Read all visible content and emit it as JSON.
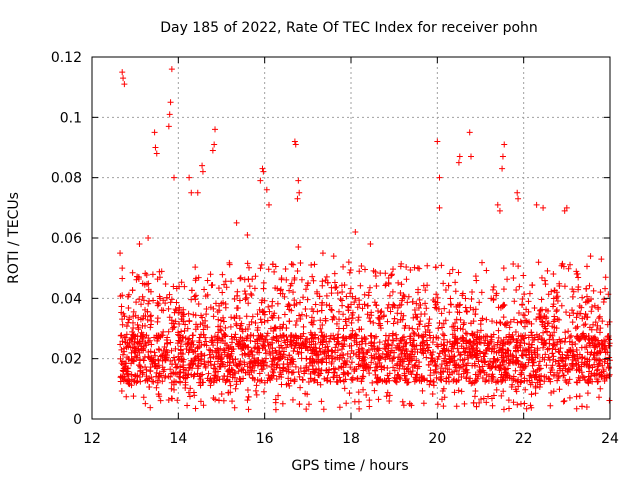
{
  "chart_data": {
    "type": "scatter",
    "title": "Day 185 of 2022, Rate Of TEC Index for receiver pohn",
    "xlabel": "GPS time / hours",
    "ylabel": "ROTI / TECUs",
    "xlim": [
      12,
      24
    ],
    "ylim": [
      0,
      0.12
    ],
    "xticks": [
      12,
      14,
      16,
      18,
      20,
      22,
      24
    ],
    "yticks": [
      0,
      0.02,
      0.04,
      0.06,
      0.08,
      0.1,
      0.12
    ],
    "xtick_labels": [
      "12",
      "14",
      "16",
      "18",
      "20",
      "22",
      "24"
    ],
    "ytick_labels": [
      "0",
      "0.02",
      "0.04",
      "0.06",
      "0.08",
      "0.1",
      "0.12"
    ],
    "grid": true,
    "marker": "+",
    "color": "#ff0000",
    "series": [
      {
        "name": "ROTI",
        "points": [
          [
            12.7,
            0.115
          ],
          [
            12.72,
            0.113
          ],
          [
            12.75,
            0.111
          ],
          [
            13.85,
            0.116
          ],
          [
            13.82,
            0.105
          ],
          [
            13.8,
            0.101
          ],
          [
            13.78,
            0.097
          ],
          [
            14.85,
            0.096
          ],
          [
            14.83,
            0.091
          ],
          [
            14.8,
            0.089
          ],
          [
            13.45,
            0.095
          ],
          [
            13.47,
            0.09
          ],
          [
            13.5,
            0.088
          ],
          [
            16.7,
            0.092
          ],
          [
            16.72,
            0.091
          ],
          [
            20.0,
            0.092
          ],
          [
            20.75,
            0.095
          ],
          [
            21.55,
            0.091
          ],
          [
            21.52,
            0.087
          ],
          [
            21.5,
            0.083
          ],
          [
            20.5,
            0.085
          ],
          [
            20.52,
            0.087
          ],
          [
            20.78,
            0.087
          ],
          [
            21.85,
            0.075
          ],
          [
            21.87,
            0.073
          ],
          [
            15.95,
            0.083
          ],
          [
            15.97,
            0.082
          ],
          [
            15.9,
            0.079
          ],
          [
            16.05,
            0.076
          ],
          [
            16.1,
            0.071
          ],
          [
            16.78,
            0.079
          ],
          [
            16.8,
            0.075
          ],
          [
            16.76,
            0.073
          ],
          [
            14.55,
            0.084
          ],
          [
            14.57,
            0.082
          ],
          [
            14.45,
            0.075
          ],
          [
            13.9,
            0.08
          ],
          [
            14.25,
            0.08
          ],
          [
            14.3,
            0.075
          ],
          [
            20.05,
            0.08
          ],
          [
            20.05,
            0.07
          ],
          [
            21.4,
            0.071
          ],
          [
            21.45,
            0.069
          ],
          [
            22.3,
            0.071
          ],
          [
            22.45,
            0.07
          ],
          [
            22.95,
            0.069
          ],
          [
            23.0,
            0.07
          ],
          [
            16.78,
            0.057
          ],
          [
            18.1,
            0.062
          ],
          [
            18.45,
            0.058
          ],
          [
            19.55,
            0.05
          ],
          [
            17.35,
            0.055
          ],
          [
            17.6,
            0.054
          ],
          [
            17.95,
            0.052
          ],
          [
            18.95,
            0.048
          ],
          [
            23.55,
            0.054
          ],
          [
            23.8,
            0.053
          ],
          [
            23.9,
            0.047
          ],
          [
            12.65,
            0.055
          ],
          [
            12.7,
            0.05
          ],
          [
            13.1,
            0.058
          ],
          [
            13.3,
            0.06
          ],
          [
            15.35,
            0.065
          ],
          [
            15.6,
            0.061
          ],
          [
            18.0,
            0.038
          ]
        ]
      }
    ]
  }
}
